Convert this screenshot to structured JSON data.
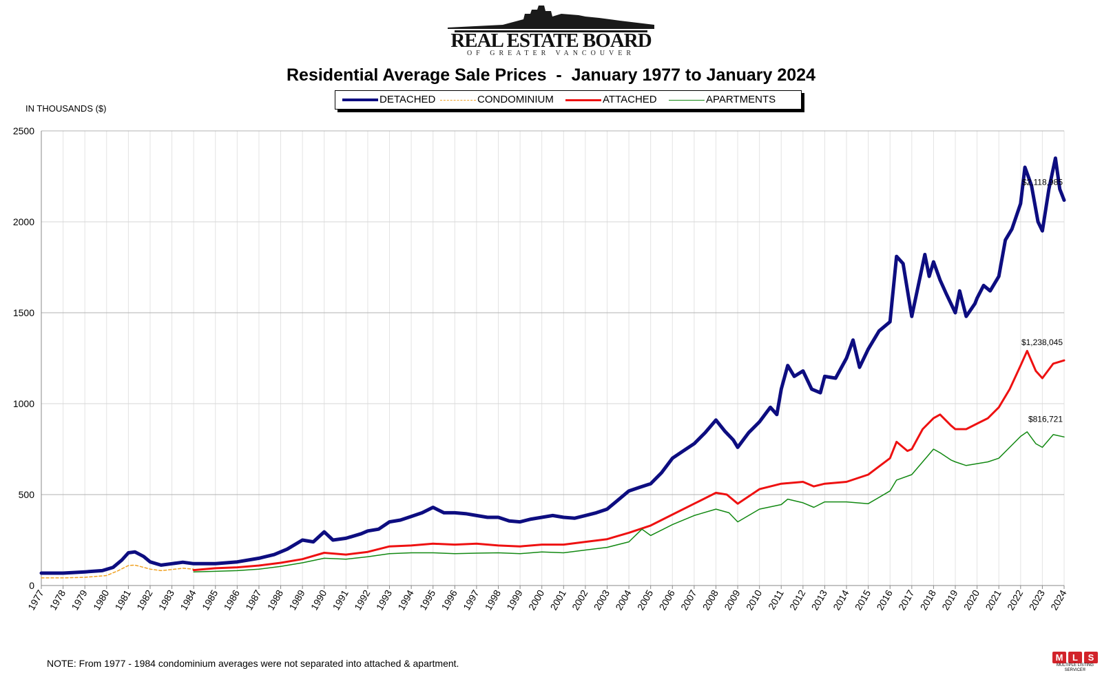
{
  "header": {
    "logo_title": "REAL ESTATE BOARD",
    "logo_subtitle": "OF GREATER VANCOUVER",
    "chart_title": "Residential Average Sale Prices  -  January 1977 to January 2024",
    "units_label": "IN THOUSANDS ($)"
  },
  "footer": {
    "note": "NOTE:  From 1977 - 1984 condominium averages were not separated into attached & apartment.",
    "mls_letters": [
      "M",
      "L",
      "S"
    ],
    "mls_caption": "MULTIPLE LISTING SERVICE®"
  },
  "colors": {
    "detached": "#0d0d80",
    "condominium": "#f0a020",
    "attached": "#ee1111",
    "apartments": "#118811",
    "mls": "#d2232a"
  },
  "chart_data": {
    "type": "line",
    "title": "Residential Average Sale Prices  -  January 1977 to January 2024",
    "ylabel": "IN THOUSANDS ($)",
    "xlabel": "",
    "ylim": [
      0,
      2500
    ],
    "yticks": [
      0,
      500,
      1000,
      1500,
      2000,
      2500
    ],
    "xlim": [
      1977,
      2024
    ],
    "xticks": [
      "1977",
      "1978",
      "1979",
      "1980",
      "1981",
      "1982",
      "1983",
      "1984",
      "1985",
      "1986",
      "1987",
      "1988",
      "1989",
      "1990",
      "1991",
      "1992",
      "1993",
      "1994",
      "1995",
      "1996",
      "1997",
      "1998",
      "1999",
      "2000",
      "2001",
      "2002",
      "2003",
      "2004",
      "2005",
      "2006",
      "2007",
      "2008",
      "2009",
      "2010",
      "2011",
      "2012",
      "2013",
      "2014",
      "2015",
      "2016",
      "2017",
      "2018",
      "2019",
      "2020",
      "2021",
      "2022",
      "2023",
      "2024"
    ],
    "grid": "vertical every year; horizontal at 500 intervals",
    "legend_position": "top-center",
    "series": [
      {
        "name": "DETACHED",
        "style": "thick-solid",
        "points": [
          [
            1977.0,
            68
          ],
          [
            1978.0,
            68
          ],
          [
            1979.0,
            75
          ],
          [
            1979.8,
            82
          ],
          [
            1980.3,
            100
          ],
          [
            1980.7,
            140
          ],
          [
            1981.0,
            180
          ],
          [
            1981.3,
            185
          ],
          [
            1981.7,
            160
          ],
          [
            1982.0,
            130
          ],
          [
            1982.5,
            112
          ],
          [
            1983.0,
            120
          ],
          [
            1983.5,
            128
          ],
          [
            1984.0,
            120
          ],
          [
            1985.0,
            120
          ],
          [
            1986.0,
            130
          ],
          [
            1987.0,
            150
          ],
          [
            1987.7,
            170
          ],
          [
            1988.3,
            200
          ],
          [
            1989.0,
            250
          ],
          [
            1989.5,
            240
          ],
          [
            1990.0,
            295
          ],
          [
            1990.4,
            250
          ],
          [
            1991.0,
            260
          ],
          [
            1991.7,
            285
          ],
          [
            1992.0,
            300
          ],
          [
            1992.5,
            310
          ],
          [
            1993.0,
            350
          ],
          [
            1993.5,
            360
          ],
          [
            1994.0,
            380
          ],
          [
            1994.5,
            400
          ],
          [
            1995.0,
            430
          ],
          [
            1995.5,
            400
          ],
          [
            1996.0,
            400
          ],
          [
            1996.5,
            395
          ],
          [
            1997.0,
            385
          ],
          [
            1997.5,
            375
          ],
          [
            1998.0,
            375
          ],
          [
            1998.5,
            355
          ],
          [
            1999.0,
            350
          ],
          [
            1999.5,
            365
          ],
          [
            2000.0,
            375
          ],
          [
            2000.5,
            385
          ],
          [
            2001.0,
            375
          ],
          [
            2001.5,
            370
          ],
          [
            2002.0,
            385
          ],
          [
            2002.5,
            400
          ],
          [
            2003.0,
            420
          ],
          [
            2003.5,
            470
          ],
          [
            2004.0,
            520
          ],
          [
            2004.5,
            540
          ],
          [
            2005.0,
            560
          ],
          [
            2005.5,
            620
          ],
          [
            2006.0,
            700
          ],
          [
            2006.5,
            740
          ],
          [
            2007.0,
            780
          ],
          [
            2007.5,
            840
          ],
          [
            2008.0,
            910
          ],
          [
            2008.4,
            850
          ],
          [
            2008.8,
            800
          ],
          [
            2009.0,
            760
          ],
          [
            2009.5,
            840
          ],
          [
            2010.0,
            900
          ],
          [
            2010.5,
            980
          ],
          [
            2010.8,
            940
          ],
          [
            2011.0,
            1080
          ],
          [
            2011.3,
            1210
          ],
          [
            2011.6,
            1150
          ],
          [
            2012.0,
            1180
          ],
          [
            2012.4,
            1080
          ],
          [
            2012.8,
            1060
          ],
          [
            2013.0,
            1150
          ],
          [
            2013.5,
            1140
          ],
          [
            2014.0,
            1250
          ],
          [
            2014.3,
            1350
          ],
          [
            2014.6,
            1200
          ],
          [
            2015.0,
            1300
          ],
          [
            2015.5,
            1400
          ],
          [
            2016.0,
            1450
          ],
          [
            2016.3,
            1810
          ],
          [
            2016.6,
            1770
          ],
          [
            2016.9,
            1550
          ],
          [
            2017.0,
            1480
          ],
          [
            2017.3,
            1650
          ],
          [
            2017.6,
            1820
          ],
          [
            2017.8,
            1700
          ],
          [
            2018.0,
            1780
          ],
          [
            2018.3,
            1680
          ],
          [
            2018.6,
            1600
          ],
          [
            2019.0,
            1500
          ],
          [
            2019.2,
            1620
          ],
          [
            2019.5,
            1480
          ],
          [
            2019.9,
            1550
          ],
          [
            2020.0,
            1580
          ],
          [
            2020.3,
            1650
          ],
          [
            2020.6,
            1620
          ],
          [
            2021.0,
            1700
          ],
          [
            2021.3,
            1900
          ],
          [
            2021.6,
            1960
          ],
          [
            2022.0,
            2100
          ],
          [
            2022.2,
            2300
          ],
          [
            2022.5,
            2200
          ],
          [
            2022.8,
            2000
          ],
          [
            2023.0,
            1950
          ],
          [
            2023.3,
            2180
          ],
          [
            2023.6,
            2350
          ],
          [
            2023.8,
            2180
          ],
          [
            2024.0,
            2119
          ]
        ]
      },
      {
        "name": "CONDOMINIUM",
        "style": "dashed",
        "points": [
          [
            1977.0,
            42
          ],
          [
            1978.0,
            42
          ],
          [
            1979.0,
            45
          ],
          [
            1980.0,
            55
          ],
          [
            1980.5,
            80
          ],
          [
            1981.0,
            110
          ],
          [
            1981.3,
            112
          ],
          [
            1981.7,
            100
          ],
          [
            1982.0,
            90
          ],
          [
            1982.5,
            82
          ],
          [
            1983.0,
            88
          ],
          [
            1983.5,
            95
          ],
          [
            1984.0,
            90
          ]
        ]
      },
      {
        "name": "ATTACHED",
        "style": "solid",
        "points": [
          [
            1984.0,
            85
          ],
          [
            1985.0,
            95
          ],
          [
            1986.0,
            100
          ],
          [
            1987.0,
            110
          ],
          [
            1988.0,
            125
          ],
          [
            1989.0,
            145
          ],
          [
            1990.0,
            180
          ],
          [
            1991.0,
            170
          ],
          [
            1992.0,
            185
          ],
          [
            1993.0,
            215
          ],
          [
            1994.0,
            220
          ],
          [
            1995.0,
            230
          ],
          [
            1996.0,
            225
          ],
          [
            1997.0,
            230
          ],
          [
            1998.0,
            220
          ],
          [
            1999.0,
            215
          ],
          [
            2000.0,
            225
          ],
          [
            2001.0,
            225
          ],
          [
            2002.0,
            240
          ],
          [
            2003.0,
            255
          ],
          [
            2004.0,
            290
          ],
          [
            2005.0,
            330
          ],
          [
            2006.0,
            390
          ],
          [
            2007.0,
            450
          ],
          [
            2008.0,
            510
          ],
          [
            2008.5,
            500
          ],
          [
            2009.0,
            450
          ],
          [
            2010.0,
            530
          ],
          [
            2011.0,
            560
          ],
          [
            2012.0,
            570
          ],
          [
            2012.5,
            545
          ],
          [
            2013.0,
            560
          ],
          [
            2014.0,
            570
          ],
          [
            2015.0,
            610
          ],
          [
            2016.0,
            700
          ],
          [
            2016.3,
            790
          ],
          [
            2016.8,
            740
          ],
          [
            2017.0,
            750
          ],
          [
            2017.5,
            860
          ],
          [
            2018.0,
            920
          ],
          [
            2018.3,
            940
          ],
          [
            2018.8,
            880
          ],
          [
            2019.0,
            860
          ],
          [
            2019.5,
            860
          ],
          [
            2020.0,
            890
          ],
          [
            2020.5,
            920
          ],
          [
            2021.0,
            980
          ],
          [
            2021.5,
            1080
          ],
          [
            2022.0,
            1210
          ],
          [
            2022.3,
            1290
          ],
          [
            2022.7,
            1180
          ],
          [
            2023.0,
            1140
          ],
          [
            2023.5,
            1220
          ],
          [
            2024.0,
            1238
          ]
        ]
      },
      {
        "name": "APARTMENTS",
        "style": "thin-solid",
        "points": [
          [
            1984.0,
            75
          ],
          [
            1985.0,
            78
          ],
          [
            1986.0,
            82
          ],
          [
            1987.0,
            90
          ],
          [
            1988.0,
            105
          ],
          [
            1989.0,
            125
          ],
          [
            1990.0,
            150
          ],
          [
            1991.0,
            145
          ],
          [
            1992.0,
            158
          ],
          [
            1993.0,
            175
          ],
          [
            1994.0,
            180
          ],
          [
            1995.0,
            180
          ],
          [
            1996.0,
            175
          ],
          [
            1997.0,
            178
          ],
          [
            1998.0,
            180
          ],
          [
            1999.0,
            175
          ],
          [
            2000.0,
            185
          ],
          [
            2001.0,
            180
          ],
          [
            2002.0,
            195
          ],
          [
            2003.0,
            210
          ],
          [
            2004.0,
            240
          ],
          [
            2004.6,
            310
          ],
          [
            2005.0,
            275
          ],
          [
            2006.0,
            335
          ],
          [
            2007.0,
            385
          ],
          [
            2008.0,
            420
          ],
          [
            2008.6,
            400
          ],
          [
            2009.0,
            350
          ],
          [
            2010.0,
            420
          ],
          [
            2011.0,
            445
          ],
          [
            2011.3,
            475
          ],
          [
            2012.0,
            455
          ],
          [
            2012.5,
            430
          ],
          [
            2013.0,
            460
          ],
          [
            2014.0,
            460
          ],
          [
            2015.0,
            450
          ],
          [
            2016.0,
            520
          ],
          [
            2016.3,
            580
          ],
          [
            2017.0,
            610
          ],
          [
            2017.5,
            680
          ],
          [
            2018.0,
            750
          ],
          [
            2018.3,
            730
          ],
          [
            2018.8,
            690
          ],
          [
            2019.0,
            680
          ],
          [
            2019.5,
            660
          ],
          [
            2020.0,
            670
          ],
          [
            2020.5,
            680
          ],
          [
            2021.0,
            700
          ],
          [
            2021.5,
            760
          ],
          [
            2022.0,
            820
          ],
          [
            2022.3,
            845
          ],
          [
            2022.7,
            780
          ],
          [
            2023.0,
            760
          ],
          [
            2023.5,
            830
          ],
          [
            2024.0,
            817
          ]
        ]
      }
    ],
    "annotations": [
      {
        "series": "DETACHED",
        "text": "$2,118,985",
        "x": 2024.0,
        "y": 2119
      },
      {
        "series": "ATTACHED",
        "text": "$1,238,045",
        "x": 2024.0,
        "y": 1238
      },
      {
        "series": "APARTMENTS",
        "text": "$816,721",
        "x": 2024.0,
        "y": 817
      }
    ]
  }
}
